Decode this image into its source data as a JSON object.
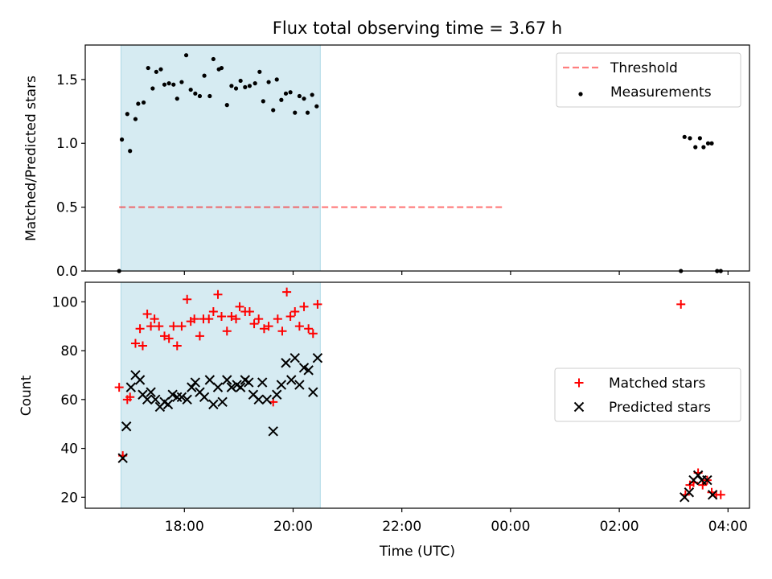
{
  "chart_data": {
    "title": "Flux total observing time = 3.67 h",
    "xlabel": "Time (UTC)",
    "x_tick_labels": [
      "18:00",
      "20:00",
      "22:00",
      "00:00",
      "02:00",
      "04:00"
    ],
    "shaded_interval": [
      "16:50",
      "20:30"
    ],
    "shade_color": "#add8e6",
    "panels": [
      {
        "type": "scatter",
        "ylabel": "Matched/Predicted stars",
        "ylim": [
          0,
          1.77
        ],
        "yticks": [
          0.0,
          0.5,
          1.0,
          1.5
        ],
        "y_tick_labels": [
          "0.0",
          "0.5",
          "1.0",
          "1.5"
        ],
        "legend_position": "top-right",
        "threshold": {
          "name": "Threshold",
          "value": 0.5,
          "x_range": [
            "16:48",
            "23:51"
          ],
          "color": "#ff0000",
          "style": "dashed"
        },
        "series": [
          {
            "name": "Measurements",
            "marker": "dot",
            "color": "#000000",
            "points": [
              [
                "16:48",
                0.0
              ],
              [
                "16:51",
                1.03
              ],
              [
                "16:57",
                1.23
              ],
              [
                "17:00",
                0.94
              ],
              [
                "17:06",
                1.19
              ],
              [
                "17:09",
                1.31
              ],
              [
                "17:15",
                1.32
              ],
              [
                "17:20",
                1.59
              ],
              [
                "17:25",
                1.43
              ],
              [
                "17:29",
                1.56
              ],
              [
                "17:34",
                1.58
              ],
              [
                "17:38",
                1.46
              ],
              [
                "17:43",
                1.47
              ],
              [
                "17:48",
                1.46
              ],
              [
                "17:52",
                1.35
              ],
              [
                "17:57",
                1.48
              ],
              [
                "18:02",
                1.69
              ],
              [
                "18:07",
                1.42
              ],
              [
                "18:12",
                1.39
              ],
              [
                "18:17",
                1.37
              ],
              [
                "18:22",
                1.53
              ],
              [
                "18:28",
                1.37
              ],
              [
                "18:32",
                1.66
              ],
              [
                "18:38",
                1.58
              ],
              [
                "18:41",
                1.59
              ],
              [
                "18:47",
                1.3
              ],
              [
                "18:52",
                1.45
              ],
              [
                "18:57",
                1.43
              ],
              [
                "19:02",
                1.49
              ],
              [
                "19:07",
                1.44
              ],
              [
                "19:12",
                1.45
              ],
              [
                "19:18",
                1.47
              ],
              [
                "19:23",
                1.56
              ],
              [
                "19:27",
                1.33
              ],
              [
                "19:33",
                1.48
              ],
              [
                "19:38",
                1.26
              ],
              [
                "19:42",
                1.5
              ],
              [
                "19:47",
                1.34
              ],
              [
                "19:52",
                1.39
              ],
              [
                "19:57",
                1.4
              ],
              [
                "20:02",
                1.24
              ],
              [
                "20:07",
                1.37
              ],
              [
                "20:12",
                1.35
              ],
              [
                "20:16",
                1.24
              ],
              [
                "20:21",
                1.38
              ],
              [
                "20:26",
                1.29
              ],
              [
                "03:08",
                0.0
              ],
              [
                "03:12",
                1.05
              ],
              [
                "03:18",
                1.04
              ],
              [
                "03:24",
                0.97
              ],
              [
                "03:29",
                1.04
              ],
              [
                "03:33",
                0.97
              ],
              [
                "03:38",
                1.0
              ],
              [
                "03:42",
                1.0
              ],
              [
                "03:48",
                0.0
              ],
              [
                "03:52",
                0.0
              ]
            ]
          }
        ]
      },
      {
        "type": "scatter",
        "ylabel": "Count",
        "ylim": [
          15.5,
          108
        ],
        "yticks": [
          20,
          40,
          60,
          80,
          100
        ],
        "y_tick_labels": [
          "20",
          "40",
          "60",
          "80",
          "100"
        ],
        "legend_position": "center-right",
        "series": [
          {
            "name": "Matched stars",
            "marker": "plus",
            "color": "#ff0000",
            "points": [
              [
                "16:48",
                65
              ],
              [
                "16:52",
                37
              ],
              [
                "16:57",
                60
              ],
              [
                "17:00",
                61
              ],
              [
                "17:06",
                83
              ],
              [
                "17:11",
                89
              ],
              [
                "17:14",
                82
              ],
              [
                "17:19",
                95
              ],
              [
                "17:23",
                90
              ],
              [
                "17:27",
                93
              ],
              [
                "17:32",
                90
              ],
              [
                "17:38",
                86
              ],
              [
                "17:43",
                85
              ],
              [
                "17:48",
                90
              ],
              [
                "17:52",
                82
              ],
              [
                "17:57",
                90
              ],
              [
                "18:03",
                101
              ],
              [
                "18:07",
                92
              ],
              [
                "18:11",
                93
              ],
              [
                "18:17",
                86
              ],
              [
                "18:21",
                93
              ],
              [
                "18:27",
                93
              ],
              [
                "18:32",
                96
              ],
              [
                "18:37",
                103
              ],
              [
                "18:41",
                94
              ],
              [
                "18:47",
                88
              ],
              [
                "18:52",
                94
              ],
              [
                "18:57",
                93
              ],
              [
                "19:01",
                98
              ],
              [
                "19:07",
                96
              ],
              [
                "19:12",
                96
              ],
              [
                "19:17",
                91
              ],
              [
                "19:22",
                93
              ],
              [
                "19:28",
                89
              ],
              [
                "19:33",
                90
              ],
              [
                "19:38",
                59
              ],
              [
                "19:43",
                93
              ],
              [
                "19:48",
                88
              ],
              [
                "19:53",
                104
              ],
              [
                "19:57",
                94
              ],
              [
                "20:02",
                96
              ],
              [
                "20:07",
                90
              ],
              [
                "20:12",
                98
              ],
              [
                "20:17",
                89
              ],
              [
                "20:22",
                87
              ],
              [
                "20:27",
                99
              ],
              [
                "03:08",
                99
              ],
              [
                "03:13",
                21
              ],
              [
                "03:18",
                25
              ],
              [
                "03:22",
                26
              ],
              [
                "03:27",
                30
              ],
              [
                "03:32",
                25
              ],
              [
                "03:37",
                27
              ],
              [
                "03:42",
                22
              ],
              [
                "03:47",
                21
              ],
              [
                "03:52",
                21
              ]
            ]
          },
          {
            "name": "Predicted stars",
            "marker": "x",
            "color": "#000000",
            "points": [
              [
                "16:52",
                36
              ],
              [
                "16:56",
                49
              ],
              [
                "17:01",
                65
              ],
              [
                "17:06",
                70
              ],
              [
                "17:11",
                68
              ],
              [
                "17:14",
                62
              ],
              [
                "17:19",
                60
              ],
              [
                "17:23",
                63
              ],
              [
                "17:28",
                60
              ],
              [
                "17:33",
                57
              ],
              [
                "17:38",
                59
              ],
              [
                "17:42",
                58
              ],
              [
                "17:47",
                62
              ],
              [
                "17:52",
                61
              ],
              [
                "17:57",
                61
              ],
              [
                "18:03",
                60
              ],
              [
                "18:08",
                65
              ],
              [
                "18:12",
                67
              ],
              [
                "18:17",
                63
              ],
              [
                "18:22",
                61
              ],
              [
                "18:28",
                68
              ],
              [
                "18:32",
                58
              ],
              [
                "18:37",
                65
              ],
              [
                "18:42",
                59
              ],
              [
                "18:47",
                68
              ],
              [
                "18:52",
                65
              ],
              [
                "18:58",
                66
              ],
              [
                "19:02",
                65
              ],
              [
                "19:07",
                68
              ],
              [
                "19:11",
                67
              ],
              [
                "19:16",
                62
              ],
              [
                "19:22",
                60
              ],
              [
                "19:26",
                67
              ],
              [
                "19:31",
                60
              ],
              [
                "19:38",
                47
              ],
              [
                "19:42",
                62
              ],
              [
                "19:47",
                66
              ],
              [
                "19:52",
                75
              ],
              [
                "19:58",
                68
              ],
              [
                "20:02",
                77
              ],
              [
                "20:07",
                66
              ],
              [
                "20:12",
                73
              ],
              [
                "20:17",
                72
              ],
              [
                "20:22",
                63
              ],
              [
                "20:27",
                77
              ],
              [
                "03:12",
                20
              ],
              [
                "03:17",
                22
              ],
              [
                "03:22",
                27
              ],
              [
                "03:27",
                29
              ],
              [
                "03:31",
                27
              ],
              [
                "03:37",
                27
              ],
              [
                "03:43",
                21
              ]
            ]
          }
        ]
      }
    ]
  }
}
